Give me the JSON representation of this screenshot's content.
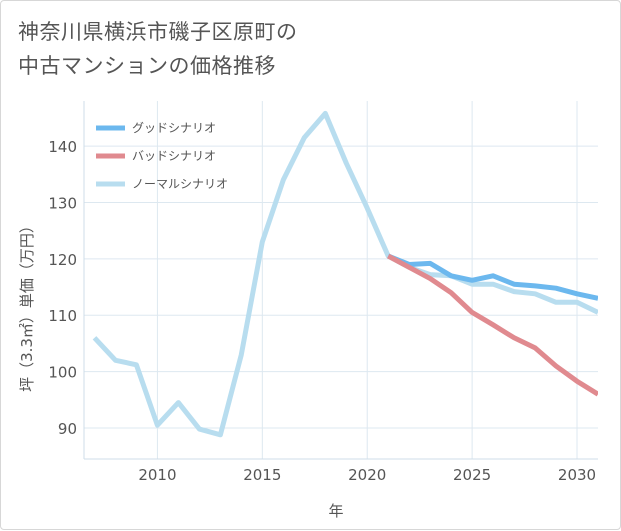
{
  "header": {
    "title_line1": "神奈川県横浜市磯子区原町の",
    "title_line2": "中古マンションの価格推移"
  },
  "chart_data": {
    "type": "line",
    "title": "神奈川県横浜市磯子区原町の中古マンションの価格推移",
    "xlabel": "年",
    "ylabel": "坪（3.3㎡）単価（万円）",
    "xlim": [
      2006.5,
      2031
    ],
    "ylim": [
      84.5,
      148
    ],
    "xticks": [
      2010,
      2015,
      2020,
      2025,
      2030
    ],
    "yticks": [
      90,
      100,
      110,
      120,
      130,
      140
    ],
    "grid": true,
    "legend_position": "top-left",
    "series": [
      {
        "name": "グッドシナリオ",
        "color": "#6cb8ee",
        "x": [
          2021,
          2022,
          2023,
          2024,
          2025,
          2026,
          2027,
          2028,
          2029,
          2030,
          2031
        ],
        "y": [
          120.5,
          119.0,
          119.2,
          117.0,
          116.2,
          117.0,
          115.5,
          115.2,
          114.8,
          113.8,
          113.0
        ]
      },
      {
        "name": "バッドシナリオ",
        "color": "#e08a8f",
        "x": [
          2021,
          2022,
          2023,
          2024,
          2025,
          2026,
          2027,
          2028,
          2029,
          2030,
          2031
        ],
        "y": [
          120.5,
          118.5,
          116.5,
          114.0,
          110.5,
          108.3,
          106.0,
          104.2,
          101.0,
          98.3,
          96.0
        ]
      },
      {
        "name": "ノーマルシナリオ",
        "color": "#b8ddef",
        "x": [
          2007,
          2008,
          2009,
          2010,
          2011,
          2012,
          2013,
          2014,
          2015,
          2016,
          2017,
          2018,
          2019,
          2020,
          2021,
          2022,
          2023,
          2024,
          2025,
          2026,
          2027,
          2028,
          2029,
          2030,
          2031
        ],
        "y": [
          106.0,
          102.0,
          101.2,
          90.5,
          94.5,
          89.8,
          88.8,
          103.0,
          123.0,
          134.0,
          141.5,
          145.8,
          137.0,
          129.0,
          120.5,
          118.5,
          117.2,
          117.0,
          115.5,
          115.5,
          114.2,
          113.8,
          112.3,
          112.3,
          110.5
        ]
      }
    ]
  }
}
